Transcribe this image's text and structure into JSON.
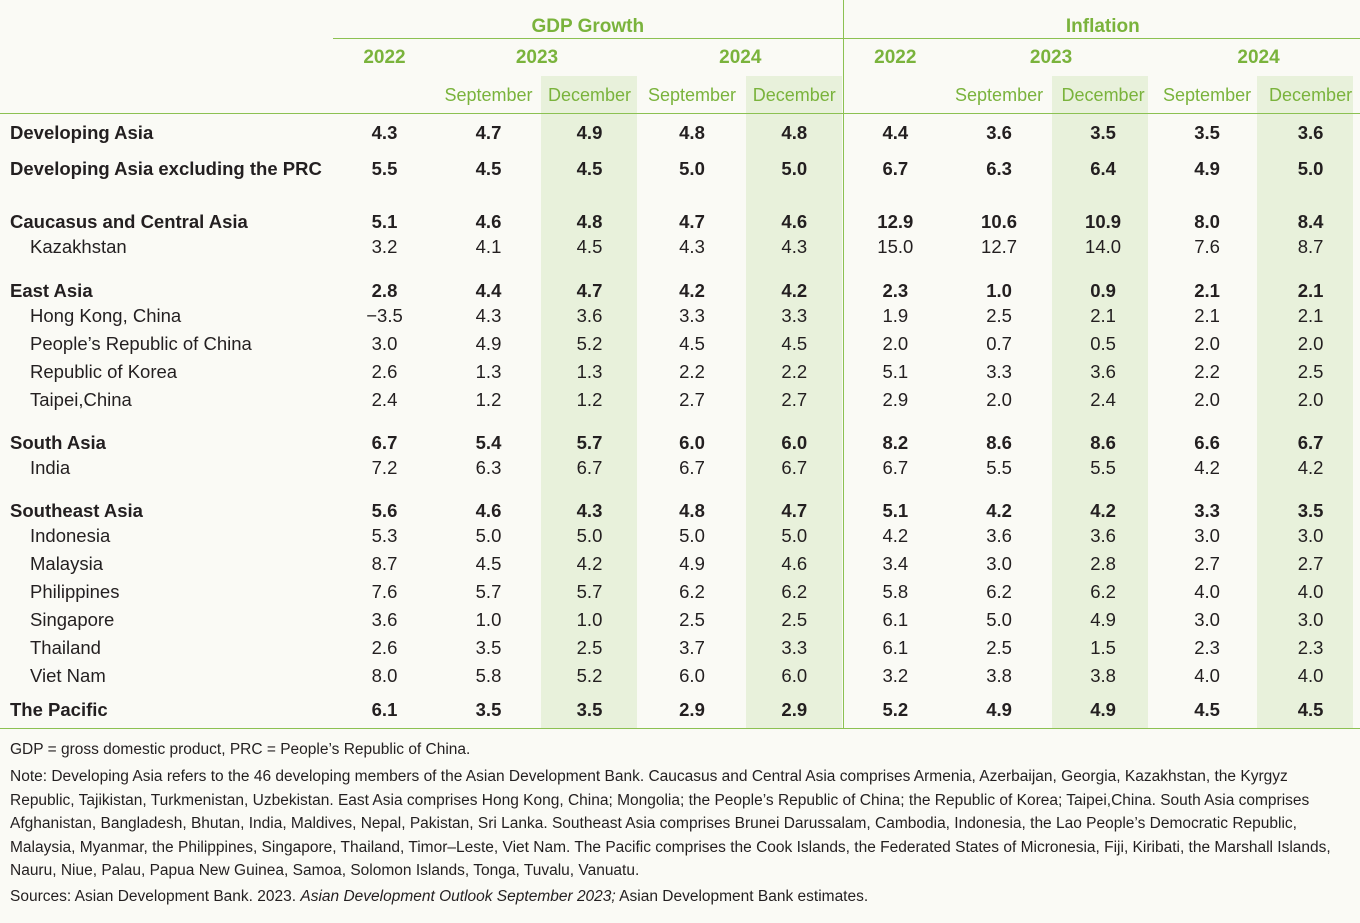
{
  "groups": {
    "gdp": "GDP Growth",
    "inflation": "Inflation"
  },
  "years": {
    "y2022": "2022",
    "y2023": "2023",
    "y2024": "2024"
  },
  "months": {
    "sep": "September",
    "dec": "December"
  },
  "rows": [
    {
      "name": "Developing Asia",
      "type": "bold",
      "values": [
        "4.3",
        "4.7",
        "4.9",
        "4.8",
        "4.8",
        "4.4",
        "3.6",
        "3.5",
        "3.5",
        "3.6"
      ]
    },
    {
      "name": "Developing Asia excluding the PRC",
      "type": "bold",
      "values": [
        "5.5",
        "4.5",
        "4.5",
        "5.0",
        "5.0",
        "6.7",
        "6.3",
        "6.4",
        "4.9",
        "5.0"
      ]
    },
    {
      "name": "Caucasus and Central Asia",
      "type": "bold",
      "values": [
        "5.1",
        "4.6",
        "4.8",
        "4.7",
        "4.6",
        "12.9",
        "10.6",
        "10.9",
        "8.0",
        "8.4"
      ]
    },
    {
      "name": "Kazakhstan",
      "type": "sub",
      "values": [
        "3.2",
        "4.1",
        "4.5",
        "4.3",
        "4.3",
        "15.0",
        "12.7",
        "14.0",
        "7.6",
        "8.7"
      ]
    },
    {
      "name": "East Asia",
      "type": "bold",
      "values": [
        "2.8",
        "4.4",
        "4.7",
        "4.2",
        "4.2",
        "2.3",
        "1.0",
        "0.9",
        "2.1",
        "2.1"
      ]
    },
    {
      "name": "Hong Kong, China",
      "type": "sub",
      "values": [
        "−3.5",
        "4.3",
        "3.6",
        "3.3",
        "3.3",
        "1.9",
        "2.5",
        "2.1",
        "2.1",
        "2.1"
      ]
    },
    {
      "name": "People’s Republic of China",
      "type": "sub",
      "values": [
        "3.0",
        "4.9",
        "5.2",
        "4.5",
        "4.5",
        "2.0",
        "0.7",
        "0.5",
        "2.0",
        "2.0"
      ]
    },
    {
      "name": "Republic of Korea",
      "type": "sub",
      "values": [
        "2.6",
        "1.3",
        "1.3",
        "2.2",
        "2.2",
        "5.1",
        "3.3",
        "3.6",
        "2.2",
        "2.5"
      ]
    },
    {
      "name": "Taipei,China",
      "type": "sub",
      "values": [
        "2.4",
        "1.2",
        "1.2",
        "2.7",
        "2.7",
        "2.9",
        "2.0",
        "2.4",
        "2.0",
        "2.0"
      ]
    },
    {
      "name": "South Asia",
      "type": "bold",
      "values": [
        "6.7",
        "5.4",
        "5.7",
        "6.0",
        "6.0",
        "8.2",
        "8.6",
        "8.6",
        "6.6",
        "6.7"
      ]
    },
    {
      "name": "India",
      "type": "sub",
      "values": [
        "7.2",
        "6.3",
        "6.7",
        "6.7",
        "6.7",
        "6.7",
        "5.5",
        "5.5",
        "4.2",
        "4.2"
      ]
    },
    {
      "name": "Southeast Asia",
      "type": "bold",
      "values": [
        "5.6",
        "4.6",
        "4.3",
        "4.8",
        "4.7",
        "5.1",
        "4.2",
        "4.2",
        "3.3",
        "3.5"
      ]
    },
    {
      "name": "Indonesia",
      "type": "sub",
      "values": [
        "5.3",
        "5.0",
        "5.0",
        "5.0",
        "5.0",
        "4.2",
        "3.6",
        "3.6",
        "3.0",
        "3.0"
      ]
    },
    {
      "name": "Malaysia",
      "type": "sub",
      "values": [
        "8.7",
        "4.5",
        "4.2",
        "4.9",
        "4.6",
        "3.4",
        "3.0",
        "2.8",
        "2.7",
        "2.7"
      ]
    },
    {
      "name": "Philippines",
      "type": "sub",
      "values": [
        "7.6",
        "5.7",
        "5.7",
        "6.2",
        "6.2",
        "5.8",
        "6.2",
        "6.2",
        "4.0",
        "4.0"
      ]
    },
    {
      "name": "Singapore",
      "type": "sub",
      "values": [
        "3.6",
        "1.0",
        "1.0",
        "2.5",
        "2.5",
        "6.1",
        "5.0",
        "4.9",
        "3.0",
        "3.0"
      ]
    },
    {
      "name": "Thailand",
      "type": "sub",
      "values": [
        "2.6",
        "3.5",
        "2.5",
        "3.7",
        "3.3",
        "6.1",
        "2.5",
        "1.5",
        "2.3",
        "2.3"
      ]
    },
    {
      "name": "Viet Nam",
      "type": "sub",
      "values": [
        "8.0",
        "5.8",
        "5.2",
        "6.0",
        "6.0",
        "3.2",
        "3.8",
        "3.8",
        "4.0",
        "4.0"
      ]
    },
    {
      "name": "The Pacific",
      "type": "bold",
      "values": [
        "6.1",
        "3.5",
        "3.5",
        "2.9",
        "2.9",
        "5.2",
        "4.9",
        "4.9",
        "4.5",
        "4.5"
      ]
    }
  ],
  "notes": {
    "abbrev": "GDP = gross domestic product, PRC = People’s Republic of China.",
    "note": "Note: Developing Asia refers to the 46 developing members of the Asian Development Bank. Caucasus and Central Asia comprises Armenia, Azerbaijan, Georgia, Kazakhstan, the Kyrgyz Republic, Tajikistan, Turkmenistan, Uzbekistan. East Asia comprises Hong Kong, China; Mongolia; the People’s Republic of China; the Republic of Korea; Taipei,China. South Asia comprises Afghanistan, Bangladesh, Bhutan, India, Maldives, Nepal, Pakistan, Sri Lanka. Southeast Asia comprises Brunei Darussalam, Cambodia, Indonesia, the Lao People’s Democratic Republic, Malaysia, Myanmar, the Philippines, Singapore, Thailand, Timor–Leste, Viet Nam. The Pacific comprises the Cook Islands, the Federated States of Micronesia, Fiji, Kiribati, the Marshall Islands, Nauru, Niue, Palau, Papua New Guinea, Samoa, Solomon Islands, Tonga, Tuvalu, Vanuatu.",
    "sources_prefix": "Sources: Asian Development Bank. 2023. ",
    "sources_title": "Asian Development Outlook September 2023;",
    "sources_suffix": " Asian Development Bank estimates."
  }
}
